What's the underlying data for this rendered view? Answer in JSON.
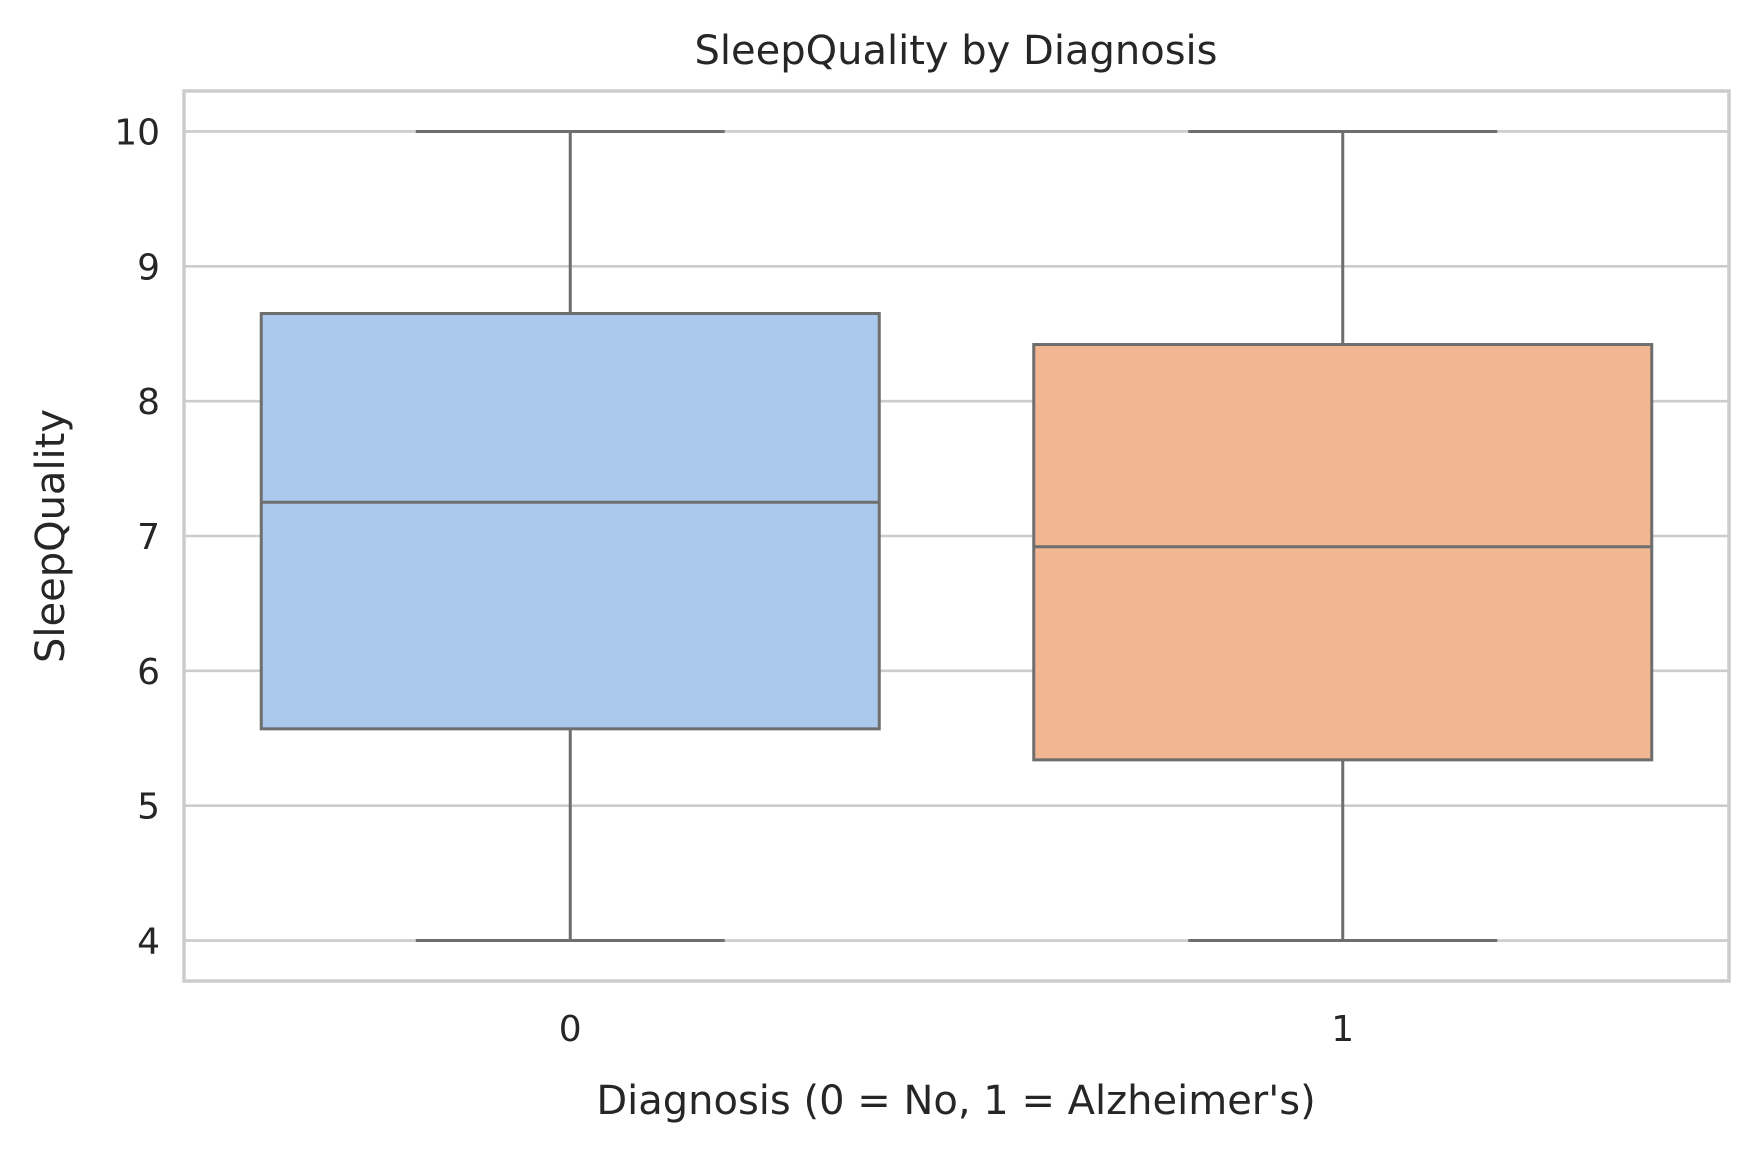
{
  "chart_data": {
    "type": "box",
    "title": "SleepQuality by Diagnosis",
    "xlabel": "Diagnosis (0 = No, 1 = Alzheimer's)",
    "ylabel": "SleepQuality",
    "ylim": [
      3.7,
      10.3
    ],
    "yticks": [
      4,
      5,
      6,
      7,
      8,
      9,
      10
    ],
    "grid": true,
    "categories": [
      "0",
      "1"
    ],
    "boxes": [
      {
        "category": "0",
        "min": 4.0,
        "q1": 5.57,
        "median": 7.25,
        "q3": 8.65,
        "max": 10.0,
        "color": "#abc9ec"
      },
      {
        "category": "1",
        "min": 4.0,
        "q1": 5.34,
        "median": 6.92,
        "q3": 8.42,
        "max": 10.0,
        "color": "#f0b792"
      }
    ],
    "colors": {
      "grid": "#cccccc",
      "frame": "#cccccc",
      "box_edge": "#6e6e6e",
      "text": "#262626"
    }
  }
}
